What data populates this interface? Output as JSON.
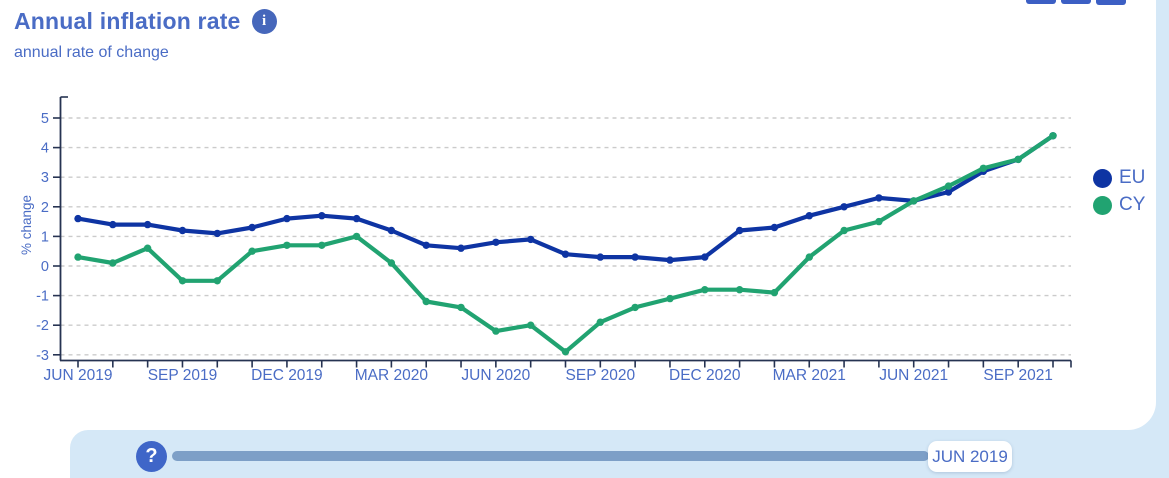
{
  "header": {
    "title": "Annual inflation rate",
    "subtitle": "annual rate of change",
    "info_glyph": "i"
  },
  "legend": [
    {
      "label": "EU",
      "color": "#0e34a3"
    },
    {
      "label": "CY",
      "color": "#21a371"
    }
  ],
  "chart_data": {
    "type": "line",
    "title": "Annual inflation rate",
    "subtitle": "annual rate of change",
    "ylabel": "% change",
    "xlabel": "",
    "ylim": [
      -3.2,
      5.7
    ],
    "yticks": [
      5,
      4,
      3,
      2,
      1,
      0,
      -1,
      -2,
      -3
    ],
    "grid": "dashed horizontal",
    "legend_position": "right",
    "x": [
      "JUN 2019",
      "JUL 2019",
      "AUG 2019",
      "SEP 2019",
      "OCT 2019",
      "NOV 2019",
      "DEC 2019",
      "JAN 2020",
      "FEB 2020",
      "MAR 2020",
      "APR 2020",
      "MAY 2020",
      "JUN 2020",
      "JUL 2020",
      "AUG 2020",
      "SEP 2020",
      "OCT 2020",
      "NOV 2020",
      "DEC 2020",
      "JAN 2021",
      "FEB 2021",
      "MAR 2021",
      "APR 2021",
      "MAY 2021",
      "JUN 2021",
      "JUL 2021",
      "AUG 2021",
      "SEP 2021",
      "OCT 2021"
    ],
    "x_labeled_every": 3,
    "series": [
      {
        "name": "EU",
        "color": "#0e34a3",
        "values": [
          1.6,
          1.4,
          1.4,
          1.2,
          1.1,
          1.3,
          1.6,
          1.7,
          1.6,
          1.2,
          0.7,
          0.6,
          0.8,
          0.9,
          0.4,
          0.3,
          0.3,
          0.2,
          0.3,
          1.2,
          1.3,
          1.7,
          2.0,
          2.3,
          2.2,
          2.5,
          3.2,
          3.6,
          4.4
        ]
      },
      {
        "name": "CY",
        "color": "#21a371",
        "values": [
          0.3,
          0.1,
          0.6,
          -0.5,
          -0.5,
          0.5,
          0.7,
          0.7,
          1.0,
          0.1,
          -1.2,
          -1.4,
          -2.2,
          -2.0,
          -2.9,
          -1.9,
          -1.4,
          -1.1,
          -0.8,
          -0.8,
          -0.9,
          0.3,
          1.2,
          1.5,
          2.2,
          2.7,
          3.3,
          3.6,
          4.4
        ]
      }
    ]
  },
  "timeline": {
    "help_glyph": "?",
    "current_label": "JUN 2019"
  },
  "colors": {
    "accent_text": "#4a6cc5",
    "axis": "#263352",
    "grid": "#cbcbcb",
    "panel_bg": "#d5e8f7",
    "track": "#7d9fc7",
    "help_bg": "#3f66c8",
    "eu": "#0e34a3",
    "cy": "#21a371"
  }
}
